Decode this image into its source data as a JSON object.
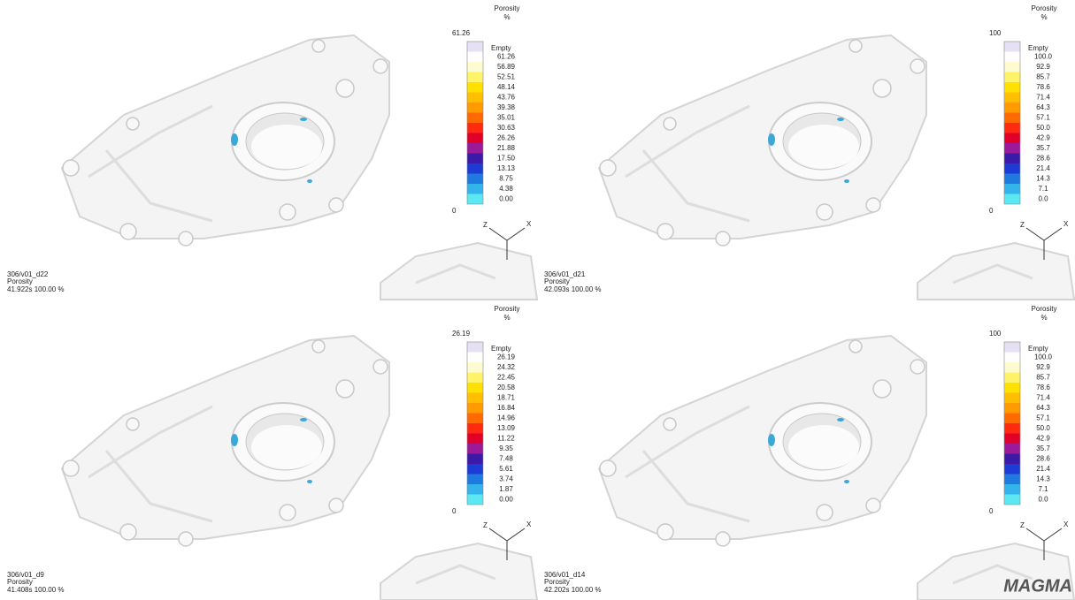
{
  "panels": [
    {
      "legend_title": "Porosity",
      "legend_unit": "%",
      "legend_max": "61.26",
      "legend_empty": "Empty",
      "legend_labels": [
        "61.26",
        "56.89",
        "52.51",
        "48.14",
        "43.76",
        "39.38",
        "35.01",
        "30.63",
        "26.26",
        "21.88",
        "17.50",
        "13.13",
        "8.75",
        "4.38",
        "0.00"
      ],
      "legend_min": "0",
      "axis_labels": [
        "Z",
        "X"
      ],
      "model_name": "306/v01_d22",
      "result_name": "Porosity",
      "time_info": "41.922s 100.00 %"
    },
    {
      "legend_title": "Porosity",
      "legend_unit": "%",
      "legend_max": "100",
      "legend_empty": "Empty",
      "legend_labels": [
        "100.0",
        "92.9",
        "85.7",
        "78.6",
        "71.4",
        "64.3",
        "57.1",
        "50.0",
        "42.9",
        "35.7",
        "28.6",
        "21.4",
        "14.3",
        "7.1",
        "0.0"
      ],
      "legend_min": "0",
      "axis_labels": [
        "Z",
        "X"
      ],
      "model_name": "306/v01_d21",
      "result_name": "Porosity",
      "time_info": "42.093s 100.00 %"
    },
    {
      "legend_title": "Porosity",
      "legend_unit": "%",
      "legend_max": "26.19",
      "legend_empty": "Empty",
      "legend_labels": [
        "26.19",
        "24.32",
        "22.45",
        "20.58",
        "18.71",
        "16.84",
        "14.96",
        "13.09",
        "11.22",
        "9.35",
        "7.48",
        "5.61",
        "3.74",
        "1.87",
        "0.00"
      ],
      "legend_min": "0",
      "axis_labels": [
        "Z",
        "X"
      ],
      "model_name": "306/v01_d9",
      "result_name": "Porosity",
      "time_info": "41.408s 100.00 %"
    },
    {
      "legend_title": "Porosity",
      "legend_unit": "%",
      "legend_max": "100",
      "legend_empty": "Empty",
      "legend_labels": [
        "100.0",
        "92.9",
        "85.7",
        "78.6",
        "71.4",
        "64.3",
        "57.1",
        "50.0",
        "42.9",
        "35.7",
        "28.6",
        "21.4",
        "14.3",
        "7.1",
        "0.0"
      ],
      "legend_min": "0",
      "axis_labels": [
        "Z",
        "X"
      ],
      "model_name": "306/v01_d14",
      "result_name": "Porosity",
      "time_info": "42.202s 100.00 %"
    }
  ],
  "legend_colors": [
    "#e6e0f5",
    "#ffffff",
    "#fffbd0",
    "#fff36a",
    "#ffe000",
    "#ffbf00",
    "#ff9a00",
    "#ff6a00",
    "#ff2a10",
    "#e0002a",
    "#9b1a9a",
    "#3b1aa8",
    "#1f3bd6",
    "#1f7ae0",
    "#35b4ec",
    "#5be8f2"
  ],
  "logo": "MAGMA"
}
